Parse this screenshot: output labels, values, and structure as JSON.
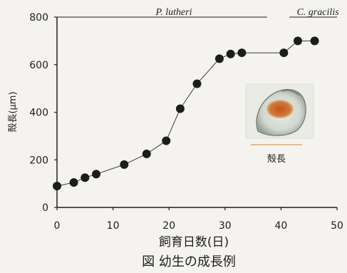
{
  "chart_data": {
    "type": "line",
    "title": "",
    "xlabel": "飼育日数(日)",
    "ylabel": "殻長(μm)",
    "xlim": [
      0,
      50
    ],
    "ylim": [
      0,
      800
    ],
    "xticks": [
      0,
      10,
      20,
      30,
      40,
      50
    ],
    "yticks": [
      0,
      200,
      400,
      600,
      800
    ],
    "grid": false,
    "series": [
      {
        "x": [
          0,
          3,
          5,
          7,
          12,
          16,
          19.5,
          22,
          25,
          29,
          31,
          33,
          40.5,
          43,
          46
        ],
        "y": [
          90,
          105,
          125,
          140,
          180,
          225,
          280,
          415,
          520,
          625,
          645,
          650,
          650,
          700,
          700
        ]
      }
    ],
    "annotations": {
      "food_period_1": {
        "label": "P. lutheri",
        "x_start": 0,
        "x_end": 37.5
      },
      "food_period_2": {
        "label": "C. gracilis",
        "x_start": 41.5,
        "x_end": 50
      },
      "inset_label": "殻長"
    },
    "caption": "図 幼生の成長例"
  }
}
